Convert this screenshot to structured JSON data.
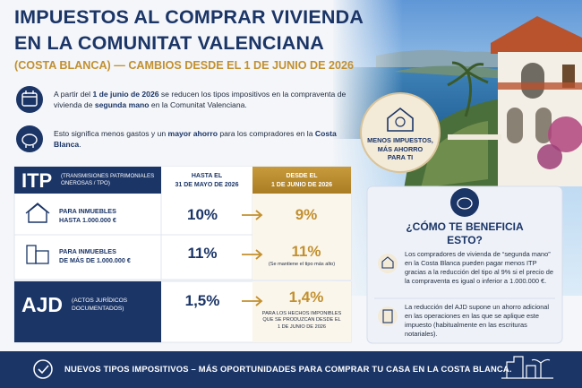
{
  "header": {
    "title_lines": [
      "IMPUESTOS AL COMPRAR VIVIENDA",
      "EN LA COMUNITAT VALENCIANA"
    ],
    "subtitle": "(COSTA BLANCA) — CAMBIOS DESDE EL 1 DE JUNIO DE 2026"
  },
  "intro": [
    {
      "segments": [
        {
          "text": "A partir del "
        },
        {
          "text": "1 de junio de 2026",
          "bold": true
        },
        {
          "text": " se reducen los tipos impositivos en la compraventa de vivienda de "
        },
        {
          "text": "segunda mano",
          "bold": true
        },
        {
          "text": " en la Comunitat Valenciana."
        }
      ]
    },
    {
      "segments": [
        {
          "text": "Esto significa menos gastos y un "
        },
        {
          "text": "mayor ahorro",
          "bold": true
        },
        {
          "text": " para los compradores en la "
        },
        {
          "text": "Costa Blanca",
          "bold": true
        },
        {
          "text": "."
        }
      ]
    }
  ],
  "badge": {
    "lines": [
      "MENOS IMPUESTOS,",
      "MÁS AHORRO",
      "PARA TI"
    ]
  },
  "table": {
    "itp": {
      "label": "ITP",
      "description": "(TRANSMISIONES PATRIMONIALES ONEROSAS / TPO)"
    },
    "columns": [
      {
        "lines": [
          "HASTA EL",
          "31 DE MAYO DE 2026"
        ]
      },
      {
        "lines": [
          "DESDE EL",
          "1 DE JUNIO DE 2026"
        ]
      }
    ],
    "rows": [
      {
        "lines": [
          "PARA INMUEBLES",
          "HASTA 1.000.000 €"
        ],
        "before": "10%",
        "after": "9%"
      },
      {
        "lines": [
          "PARA INMUEBLES",
          "DE MÁS DE 1.000.000 €"
        ],
        "before": "11%",
        "after": "11%",
        "note": "(Se mantiene el tipo más alto)"
      }
    ],
    "ajd": {
      "label": "AJD",
      "description_lines": [
        "(ACTOS JURÍDICOS",
        "DOCUMENTADOS)"
      ],
      "before": "1,5%",
      "after": "1,4%",
      "note_lines": [
        "PARA LOS HECHOS IMPONIBLES",
        "QUE SE PRODUZCAN DESDE EL",
        "1 DE JUNIO DE 2026"
      ]
    }
  },
  "benefit": {
    "title_lines": [
      "¿CÓMO TE BENEFICIA",
      "ESTO?"
    ],
    "items": [
      "Los compradores de vivienda de “segunda mano” en la Costa Blanca pueden pagar menos ITP gracias a la reducción del tipo al 9% si el precio de la compraventa es igual o inferior a 1.000.000 €.",
      "La reducción del AJD supone un ahorro adicional en las operaciones en las que se aplique este impuesto (habitualmente en las escrituras notariales)."
    ]
  },
  "footer": {
    "text": "NUEVOS TIPOS IMPOSITIVOS – MÁS OPORTUNIDADES PARA COMPRAR TU CASA EN LA COSTA BLANCA."
  }
}
